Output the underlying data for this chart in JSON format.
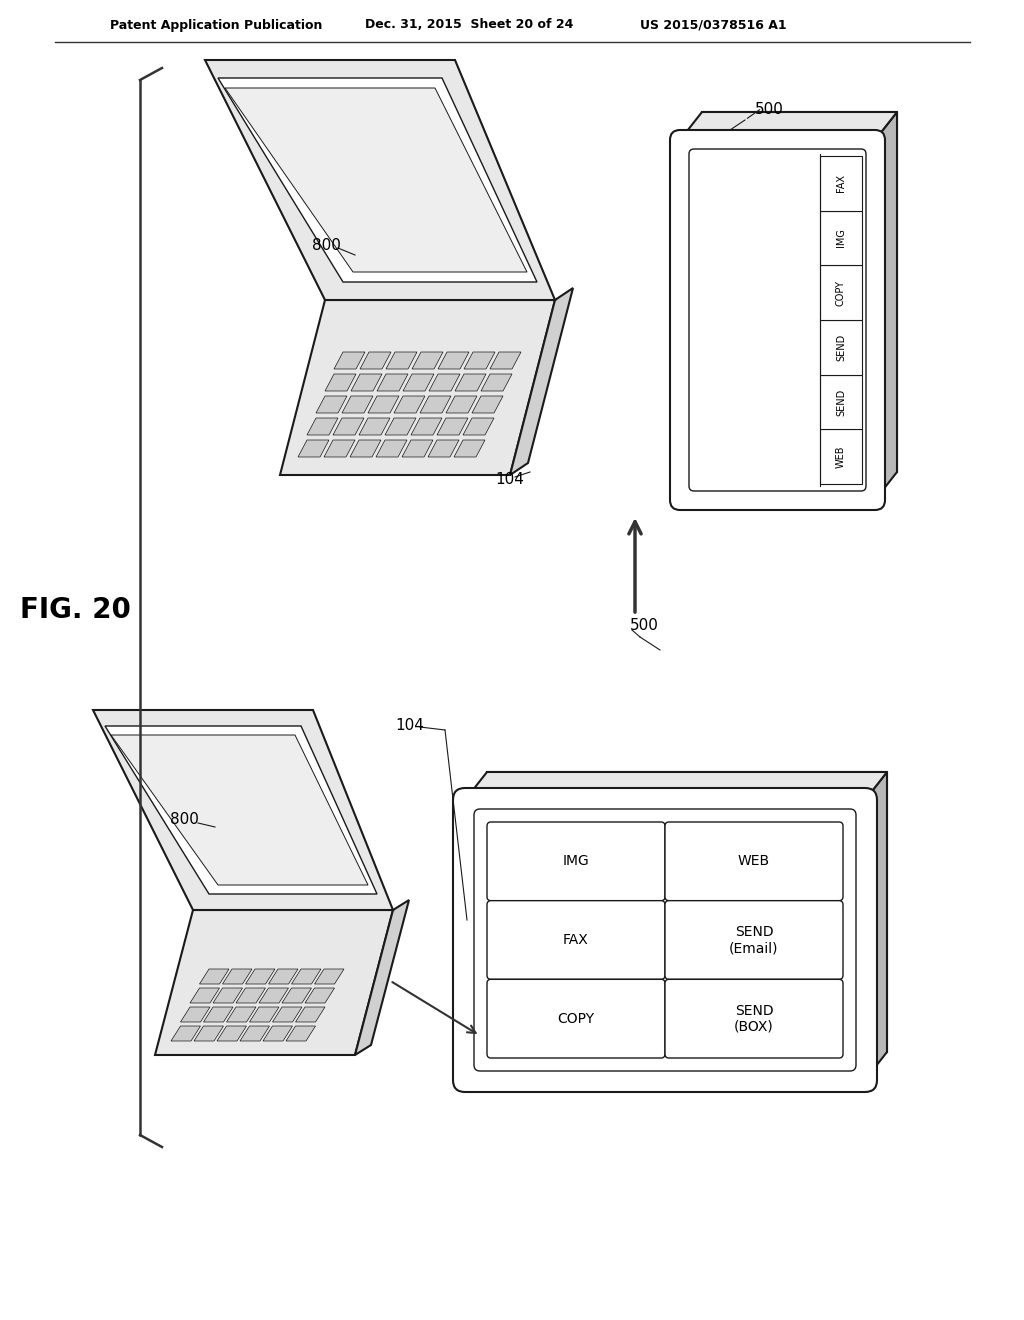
{
  "header_left": "Patent Application Publication",
  "header_mid": "Dec. 31, 2015  Sheet 20 of 24",
  "header_right": "US 2015/0378516 A1",
  "fig_label": "FIG. 20",
  "bg_color": "#ffffff",
  "lc": "#1a1a1a",
  "gray_light": "#e8e8e8",
  "gray_mid": "#d0d0d0",
  "gray_dark": "#b8b8b8",
  "key_fill": "#cccccc",
  "buttons_top_right": [
    "WEB",
    "SEND",
    "SEND",
    "COPY",
    "IMG",
    "FAX"
  ],
  "buttons_grid": [
    [
      "IMG",
      "WEB"
    ],
    [
      "FAX",
      "SEND\n(Email)"
    ],
    [
      "COPY",
      "SEND\n(BOX)"
    ]
  ]
}
